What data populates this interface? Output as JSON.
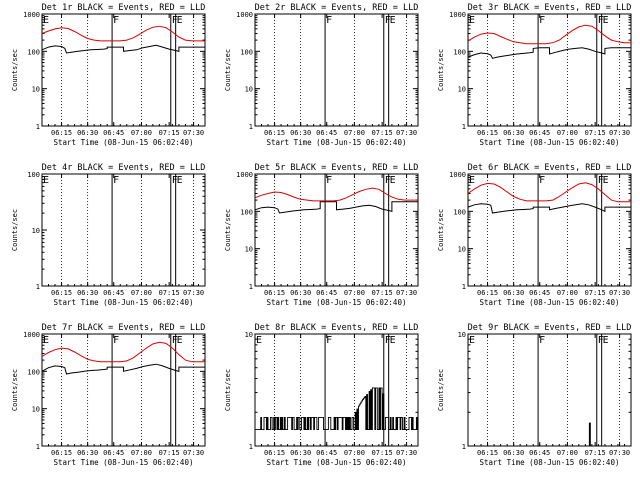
{
  "colors": {
    "background": "#ffffff",
    "events": "#000000",
    "lld": "#dd0000",
    "axis": "#000000"
  },
  "chart_data": [
    {
      "type": "line",
      "title": "Det 1r BLACK = Events, RED = LLD",
      "ylabel": "Counts/sec",
      "xlabel": "Start Time (08-Jun-15 06:02:40)",
      "yscale": "log",
      "ylim": [
        1,
        1000
      ],
      "yticks": [
        "1",
        "10",
        "100",
        "1000"
      ],
      "xlim": [
        0,
        100
      ],
      "xticks": [
        "06:15",
        "06:30",
        "06:45",
        "07:00",
        "07:15",
        "07:30"
      ],
      "markers": [
        {
          "label": "E",
          "x": 0
        },
        {
          "label": "F",
          "x": 43
        },
        {
          "label": "F",
          "x": 79
        },
        {
          "label": "E",
          "x": 82
        }
      ],
      "series": [
        {
          "name": "Events",
          "x": [
            0,
            4,
            8,
            12,
            14,
            15,
            18,
            22,
            26,
            30,
            34,
            38,
            40,
            40,
            44,
            48,
            50,
            50,
            54,
            58,
            62,
            66,
            70,
            74,
            78,
            82,
            84,
            84,
            88,
            92,
            96,
            100
          ],
          "values": [
            110,
            130,
            140,
            135,
            120,
            90,
            95,
            100,
            105,
            110,
            112,
            115,
            118,
            130,
            130,
            130,
            130,
            100,
            105,
            110,
            125,
            135,
            145,
            130,
            115,
            105,
            100,
            130,
            130,
            130,
            130,
            130
          ]
        },
        {
          "name": "LLD",
          "x": [
            0,
            4,
            8,
            12,
            16,
            20,
            24,
            28,
            32,
            36,
            40,
            44,
            48,
            52,
            56,
            60,
            64,
            68,
            72,
            76,
            80,
            84,
            88,
            92,
            96,
            100
          ],
          "values": [
            300,
            350,
            400,
            430,
            410,
            340,
            270,
            220,
            200,
            190,
            190,
            190,
            190,
            200,
            230,
            290,
            370,
            440,
            470,
            430,
            330,
            240,
            200,
            190,
            190,
            190
          ]
        }
      ]
    },
    {
      "type": "line",
      "title": "Det 2r BLACK = Events, RED = LLD",
      "ylabel": "Counts/sec",
      "xlabel": "Start Time (08-Jun-15 06:02:40)",
      "yscale": "log",
      "ylim": [
        1,
        1000
      ],
      "yticks": [
        "1",
        "10",
        "100",
        "1000"
      ],
      "xlim": [
        0,
        100
      ],
      "xticks": [
        "06:15",
        "06:30",
        "06:45",
        "07:00",
        "07:15",
        "07:30"
      ],
      "markers": [
        {
          "label": "F",
          "x": 43
        },
        {
          "label": "F",
          "x": 79
        },
        {
          "label": "E",
          "x": 82
        }
      ],
      "series": []
    },
    {
      "type": "line",
      "title": "Det 3r BLACK = Events, RED = LLD",
      "ylabel": "Counts/sec",
      "xlabel": "Start Time (08-Jun-15 06:02:40)",
      "yscale": "log",
      "ylim": [
        1,
        1000
      ],
      "yticks": [
        "1",
        "10",
        "100",
        "1000"
      ],
      "xlim": [
        0,
        100
      ],
      "xticks": [
        "06:15",
        "06:30",
        "06:45",
        "07:00",
        "07:15",
        "07:30"
      ],
      "markers": [
        {
          "label": "E",
          "x": 0
        },
        {
          "label": "F",
          "x": 43
        },
        {
          "label": "F",
          "x": 79
        },
        {
          "label": "E",
          "x": 82
        }
      ],
      "series": [
        {
          "name": "Events",
          "x": [
            0,
            4,
            8,
            12,
            14,
            15,
            18,
            22,
            26,
            30,
            34,
            38,
            40,
            40,
            44,
            48,
            50,
            50,
            54,
            58,
            62,
            66,
            70,
            74,
            78,
            82,
            84,
            84,
            88,
            92,
            96,
            100
          ],
          "values": [
            70,
            82,
            90,
            86,
            80,
            65,
            70,
            75,
            80,
            85,
            88,
            92,
            95,
            120,
            125,
            125,
            125,
            85,
            95,
            105,
            115,
            120,
            125,
            115,
            100,
            90,
            85,
            120,
            125,
            125,
            125,
            125
          ]
        },
        {
          "name": "LLD",
          "x": [
            0,
            4,
            8,
            12,
            16,
            20,
            24,
            28,
            32,
            36,
            40,
            44,
            48,
            52,
            56,
            60,
            64,
            68,
            72,
            76,
            80,
            84,
            88,
            92,
            96,
            100
          ],
          "values": [
            190,
            240,
            290,
            310,
            300,
            250,
            210,
            180,
            170,
            160,
            160,
            160,
            160,
            170,
            200,
            270,
            360,
            450,
            500,
            470,
            360,
            260,
            200,
            180,
            170,
            170
          ]
        }
      ]
    },
    {
      "type": "line",
      "title": "Det 4r BLACK = Events, RED = LLD",
      "ylabel": "Counts/sec",
      "xlabel": "Start Time (08-Jun-15 06:02:40)",
      "yscale": "log",
      "ylim": [
        1,
        100
      ],
      "yticks": [
        "1",
        "10",
        "100"
      ],
      "xlim": [
        0,
        100
      ],
      "xticks": [
        "06:15",
        "06:30",
        "06:45",
        "07:00",
        "07:15",
        "07:30"
      ],
      "markers": [
        {
          "label": "E",
          "x": 0
        },
        {
          "label": "F",
          "x": 43
        },
        {
          "label": "F",
          "x": 79
        },
        {
          "label": "E",
          "x": 82
        }
      ],
      "series": []
    },
    {
      "type": "line",
      "title": "Det 5r BLACK = Events, RED = LLD",
      "ylabel": "Counts/sec",
      "xlabel": "Start Time (08-Jun-15 06:02:40)",
      "yscale": "log",
      "ylim": [
        1,
        1000
      ],
      "yticks": [
        "1",
        "10",
        "100",
        "1000"
      ],
      "xlim": [
        0,
        100
      ],
      "xticks": [
        "06:15",
        "06:30",
        "06:45",
        "07:00",
        "07:15",
        "07:30"
      ],
      "markers": [
        {
          "label": "F",
          "x": 43
        },
        {
          "label": "F",
          "x": 79
        },
        {
          "label": "E",
          "x": 82
        }
      ],
      "series": [
        {
          "name": "Events",
          "x": [
            0,
            4,
            8,
            12,
            14,
            15,
            18,
            22,
            26,
            30,
            34,
            38,
            40,
            40,
            44,
            48,
            50,
            50,
            54,
            58,
            62,
            66,
            70,
            74,
            78,
            82,
            84,
            84,
            88,
            92,
            96,
            100
          ],
          "values": [
            110,
            125,
            130,
            125,
            115,
            90,
            95,
            100,
            105,
            110,
            112,
            115,
            118,
            180,
            180,
            180,
            180,
            110,
            115,
            120,
            130,
            140,
            145,
            135,
            115,
            105,
            100,
            180,
            180,
            180,
            180,
            180
          ]
        },
        {
          "name": "LLD",
          "x": [
            0,
            4,
            8,
            12,
            16,
            20,
            24,
            28,
            32,
            36,
            40,
            44,
            48,
            52,
            56,
            60,
            64,
            68,
            72,
            76,
            80,
            84,
            88,
            92,
            96,
            100
          ],
          "values": [
            230,
            270,
            300,
            330,
            320,
            280,
            240,
            210,
            200,
            190,
            190,
            190,
            190,
            200,
            230,
            280,
            340,
            390,
            420,
            390,
            300,
            240,
            210,
            200,
            200,
            200
          ]
        }
      ]
    },
    {
      "type": "line",
      "title": "Det 6r BLACK = Events, RED = LLD",
      "ylabel": "Counts/sec",
      "xlabel": "Start Time (08-Jun-15 06:02:40)",
      "yscale": "log",
      "ylim": [
        1,
        1000
      ],
      "yticks": [
        "1",
        "10",
        "100",
        "1000"
      ],
      "xlim": [
        0,
        100
      ],
      "xticks": [
        "06:15",
        "06:30",
        "06:45",
        "07:00",
        "07:15",
        "07:30"
      ],
      "markers": [
        {
          "label": "E",
          "x": 0
        },
        {
          "label": "F",
          "x": 43
        },
        {
          "label": "F",
          "x": 79
        },
        {
          "label": "E",
          "x": 82
        }
      ],
      "series": [
        {
          "name": "Events",
          "x": [
            0,
            4,
            8,
            12,
            14,
            15,
            18,
            22,
            26,
            30,
            34,
            38,
            40,
            40,
            44,
            48,
            50,
            50,
            54,
            58,
            62,
            66,
            70,
            74,
            78,
            82,
            84,
            84,
            88,
            92,
            96,
            100
          ],
          "values": [
            130,
            150,
            160,
            155,
            145,
            90,
            95,
            100,
            105,
            110,
            112,
            115,
            118,
            130,
            130,
            130,
            130,
            110,
            120,
            130,
            140,
            150,
            160,
            150,
            130,
            110,
            100,
            130,
            130,
            130,
            130,
            130
          ]
        },
        {
          "name": "LLD",
          "x": [
            0,
            4,
            8,
            12,
            16,
            20,
            24,
            28,
            32,
            36,
            40,
            44,
            48,
            52,
            56,
            60,
            64,
            68,
            72,
            76,
            80,
            84,
            88,
            92,
            96,
            100
          ],
          "values": [
            300,
            400,
            500,
            560,
            540,
            440,
            330,
            250,
            210,
            190,
            190,
            190,
            190,
            200,
            250,
            330,
            430,
            540,
            580,
            520,
            400,
            280,
            200,
            180,
            180,
            180
          ]
        }
      ]
    },
    {
      "type": "line",
      "title": "Det 7r BLACK = Events, RED = LLD",
      "ylabel": "Counts/sec",
      "xlabel": "Start Time (08-Jun-15 06:02:40)",
      "yscale": "log",
      "ylim": [
        1,
        1000
      ],
      "yticks": [
        "1",
        "10",
        "100",
        "1000"
      ],
      "xlim": [
        0,
        100
      ],
      "xticks": [
        "06:15",
        "06:30",
        "06:45",
        "07:00",
        "07:15",
        "07:30"
      ],
      "markers": [
        {
          "label": "E",
          "x": 0
        },
        {
          "label": "F",
          "x": 43
        },
        {
          "label": "F",
          "x": 79
        },
        {
          "label": "E",
          "x": 82
        }
      ],
      "series": [
        {
          "name": "Events",
          "x": [
            0,
            4,
            8,
            12,
            14,
            15,
            18,
            22,
            26,
            30,
            34,
            38,
            40,
            40,
            44,
            48,
            50,
            50,
            54,
            58,
            62,
            66,
            70,
            74,
            78,
            82,
            84,
            84,
            88,
            92,
            96,
            100
          ],
          "values": [
            100,
            125,
            140,
            135,
            125,
            85,
            90,
            95,
            100,
            105,
            108,
            112,
            115,
            130,
            130,
            130,
            130,
            100,
            110,
            120,
            135,
            145,
            155,
            140,
            120,
            105,
            100,
            130,
            130,
            130,
            130,
            130
          ]
        },
        {
          "name": "LLD",
          "x": [
            0,
            4,
            8,
            12,
            16,
            20,
            24,
            28,
            32,
            36,
            40,
            44,
            48,
            52,
            56,
            60,
            64,
            68,
            72,
            76,
            80,
            84,
            88,
            92,
            96,
            100
          ],
          "values": [
            250,
            320,
            380,
            420,
            400,
            330,
            260,
            210,
            190,
            180,
            180,
            180,
            180,
            190,
            230,
            310,
            420,
            540,
            600,
            560,
            420,
            280,
            200,
            180,
            180,
            180
          ]
        }
      ]
    },
    {
      "type": "line",
      "title": "Det 8r BLACK = Events, RED = LLD",
      "ylabel": "Counts/sec",
      "xlabel": "Start Time (08-Jun-15 06:02:40)",
      "yscale": "log",
      "ylim": [
        1,
        10
      ],
      "yticks": [
        "1",
        "10"
      ],
      "xlim": [
        0,
        100
      ],
      "xticks": [
        "06:15",
        "06:30",
        "06:45",
        "07:00",
        "07:15",
        "07:30"
      ],
      "markers": [
        {
          "label": "E",
          "x": 0
        },
        {
          "label": "F",
          "x": 43
        },
        {
          "label": "F",
          "x": 79
        },
        {
          "label": "E",
          "x": 82
        }
      ],
      "series": [
        {
          "name": "Events",
          "noise": "binary",
          "levels": [
            1.4,
            1.8,
            2.6,
            3.3
          ],
          "envelope_x": [
            0,
            60,
            66,
            72,
            78,
            80,
            100
          ],
          "envelope_hi": [
            1.8,
            1.8,
            2.6,
            3.3,
            3.3,
            1.8,
            1.8
          ],
          "samples": 200
        }
      ]
    },
    {
      "type": "line",
      "title": "Det 9r BLACK = Events, RED = LLD",
      "ylabel": "Counts/sec",
      "xlabel": "Start Time (08-Jun-15 06:02:40)",
      "yscale": "log",
      "ylim": [
        1,
        10
      ],
      "yticks": [
        "1",
        "10"
      ],
      "xlim": [
        0,
        100
      ],
      "xticks": [
        "06:15",
        "06:30",
        "06:45",
        "07:00",
        "07:15",
        "07:30"
      ],
      "markers": [
        {
          "label": "E",
          "x": 0
        },
        {
          "label": "F",
          "x": 43
        },
        {
          "label": "F",
          "x": 79
        },
        {
          "label": "E",
          "x": 82
        }
      ],
      "series": [
        {
          "name": "Events",
          "x": [
            0,
            74.5,
            74.5,
            75,
            75,
            100
          ],
          "values": [
            1,
            1,
            1.6,
            1.6,
            1,
            1
          ]
        }
      ]
    }
  ]
}
